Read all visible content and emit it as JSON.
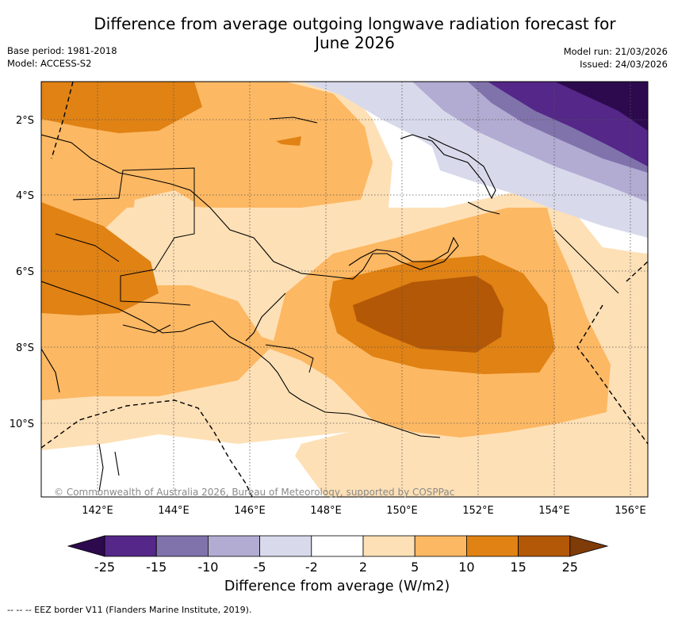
{
  "header": {
    "title_line1": "Difference from average outgoing longwave radiation forecast for",
    "title_line2": "June 2026",
    "base_period": "Base period: 1981-2018",
    "model": "Model: ACCESS-S2",
    "model_run": "Model run: 21/03/2026",
    "issued": "Issued: 24/03/2026"
  },
  "map": {
    "latitude_labels": [
      "2°S",
      "4°S",
      "6°S",
      "8°S",
      "10°S"
    ],
    "longitude_labels": [
      "142°E",
      "144°E",
      "146°E",
      "148°E",
      "150°E",
      "152°E",
      "154°E",
      "156°E"
    ],
    "copyright": "© Commonwealth of Australia 2026, Bureau of Meteorology, supported by COSPPac"
  },
  "colorbar": {
    "tick_labels": [
      "-25",
      "-15",
      "-10",
      "-5",
      "-2",
      "2",
      "5",
      "10",
      "15",
      "25"
    ],
    "colors": [
      "#2d0a4e",
      "#542788",
      "#8073ac",
      "#b2abd2",
      "#d8daeb",
      "#ffffff",
      "#fee0b6",
      "#fdb863",
      "#e08214",
      "#b35806",
      "#7f3b08"
    ],
    "label": "Difference from average (W/m2)"
  },
  "footnote": "--  --  -- EEZ border V11 (Flanders Marine Institute, 2019)."
}
